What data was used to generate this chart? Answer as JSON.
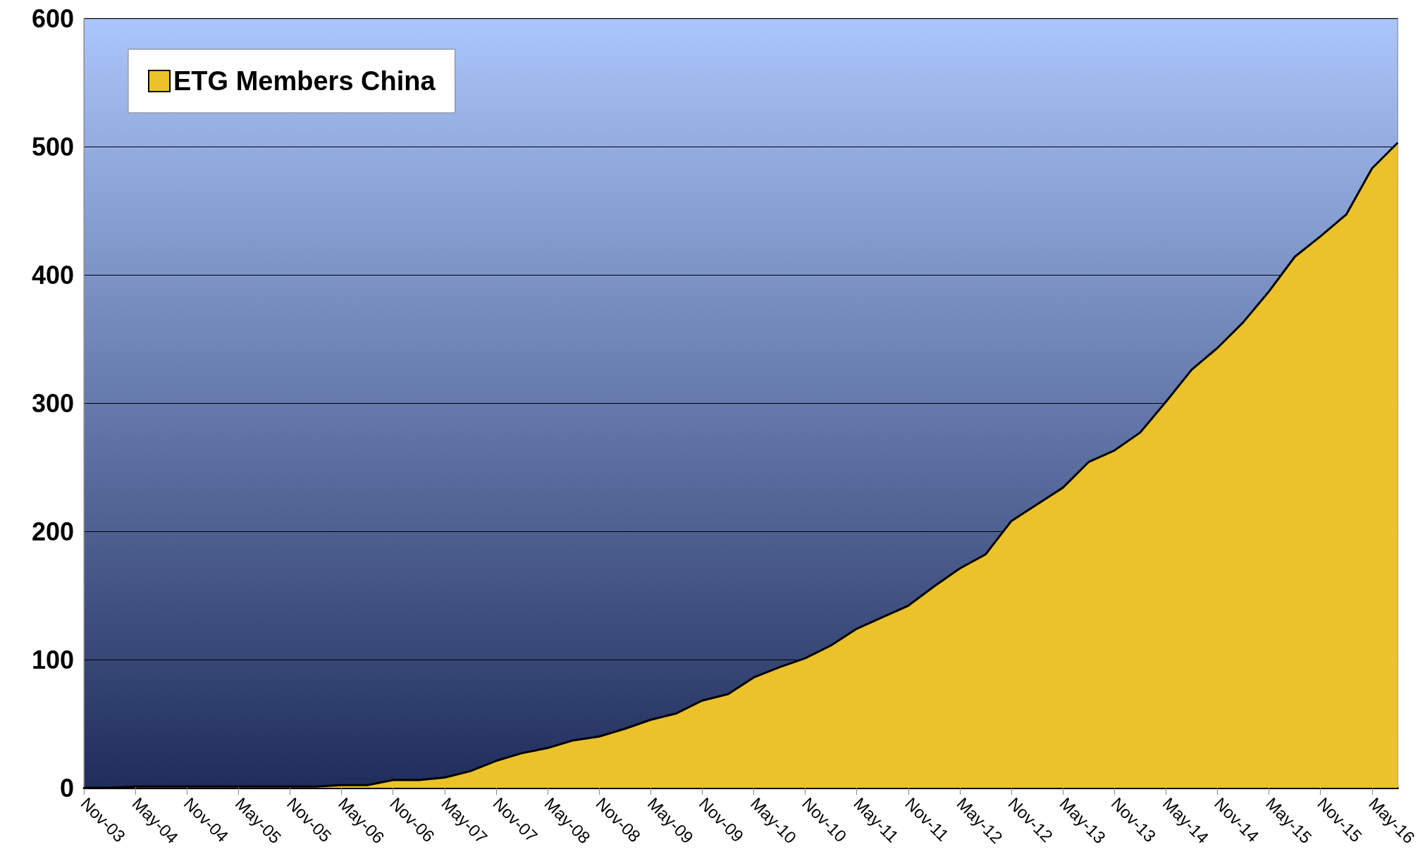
{
  "chart_data": {
    "type": "area",
    "categories": [
      "Nov-03",
      null,
      "May-04",
      null,
      "Nov-04",
      null,
      "May-05",
      null,
      "Nov-05",
      null,
      "May-06",
      null,
      "Nov-06",
      null,
      "May-07",
      null,
      "Nov-07",
      null,
      "May-08",
      null,
      "Nov-08",
      null,
      "May-09",
      null,
      "Nov-09",
      null,
      "May-10",
      null,
      "Nov-10",
      null,
      "May-11",
      null,
      "Nov-11",
      null,
      "May-12",
      null,
      "Nov-12",
      null,
      "May-13",
      null,
      "Nov-13",
      null,
      "May-14",
      null,
      "Nov-14",
      null,
      "May-15",
      null,
      "Nov-15",
      null,
      "May-16",
      null
    ],
    "series": [
      {
        "name": "ETG Members China",
        "color": "#ebc229",
        "values": [
          0,
          0,
          1,
          1,
          1,
          1,
          1,
          1,
          1,
          1,
          2,
          2,
          6,
          6,
          8,
          13,
          21,
          27,
          31,
          37,
          40,
          46,
          53,
          58,
          68,
          73,
          86,
          94,
          101,
          111,
          124,
          133,
          142,
          157,
          171,
          182,
          208,
          221,
          234,
          254,
          263,
          277,
          301,
          326,
          343,
          363,
          387,
          414,
          430,
          447,
          483,
          503
        ]
      }
    ],
    "ylim": [
      0,
      600
    ],
    "yticks": [
      0,
      100,
      200,
      300,
      400,
      500,
      600
    ],
    "grid": "y",
    "legend": "top left"
  }
}
